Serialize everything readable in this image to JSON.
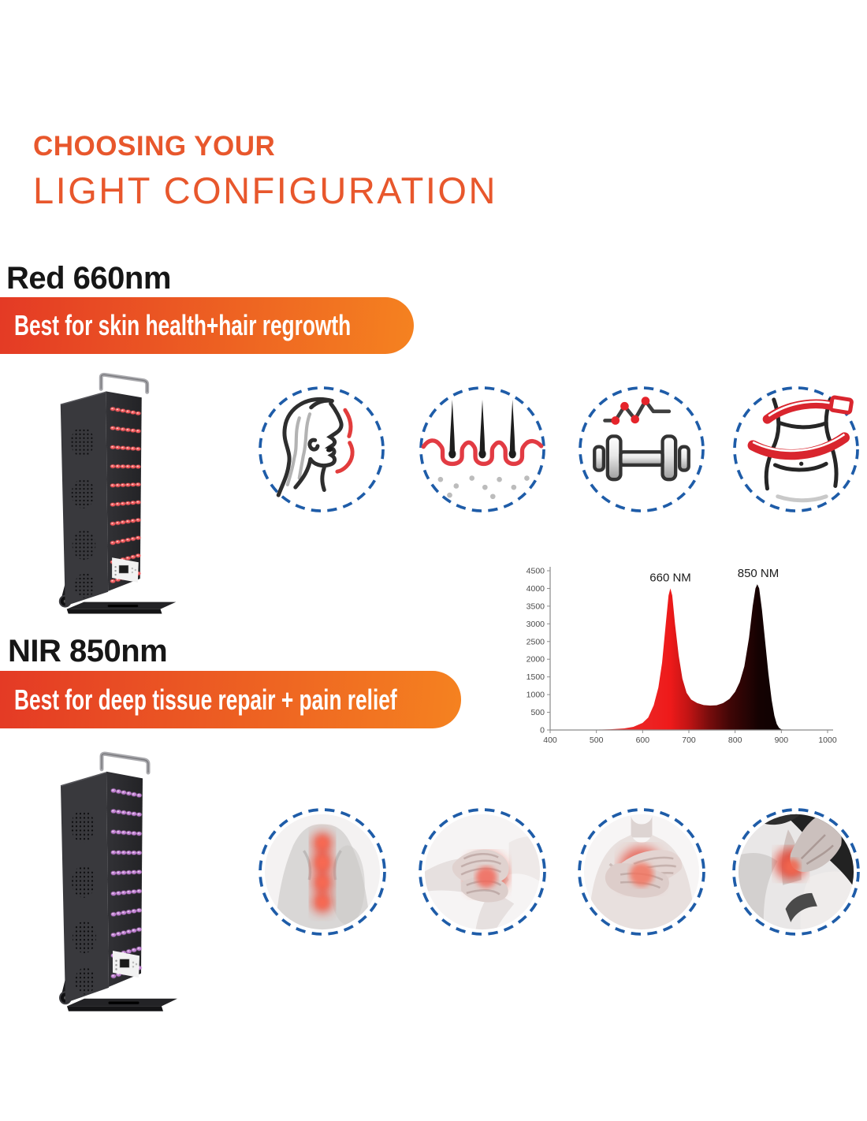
{
  "header": {
    "line1": "CHOOSING YOUR",
    "line2": "LIGHT CONFIGURATION"
  },
  "sections": [
    {
      "heading": "Red 660nm",
      "banner": "Best for skin health+hair regrowth",
      "icons": [
        {
          "name": "skin-health-icon"
        },
        {
          "name": "hair-regrowth-icon"
        },
        {
          "name": "muscle-recovery-icon"
        },
        {
          "name": "body-slimming-icon"
        }
      ],
      "product": {
        "name": "red-660nm-panel-image",
        "led_rows": 10,
        "led_cols": 6
      }
    },
    {
      "heading": "NIR 850nm",
      "banner": "Best for deep tissue repair + pain relief",
      "icons": [
        {
          "name": "back-pain-photo"
        },
        {
          "name": "knee-pain-photo"
        },
        {
          "name": "chest-pain-photo"
        },
        {
          "name": "neck-pain-photo"
        }
      ],
      "product": {
        "name": "nir-850nm-panel-image",
        "led_rows": 10,
        "led_cols": 6
      }
    }
  ],
  "chart_data": {
    "type": "area",
    "title": "",
    "xlabel": "",
    "ylabel": "",
    "xlim": [
      400,
      1000
    ],
    "ylim": [
      0,
      4500
    ],
    "x_ticks": [
      400,
      500,
      600,
      700,
      800,
      900,
      1000
    ],
    "y_ticks": [
      0,
      500,
      1000,
      1500,
      2000,
      2500,
      3000,
      3500,
      4000,
      4500
    ],
    "grid": false,
    "x": [
      400,
      460,
      500,
      530,
      560,
      580,
      600,
      612,
      624,
      634,
      642,
      650,
      656,
      660,
      664,
      670,
      678,
      686,
      695,
      705,
      718,
      732,
      746,
      760,
      774,
      788,
      800,
      810,
      820,
      830,
      838,
      844,
      848,
      852,
      858,
      865,
      872,
      879,
      885,
      890,
      895,
      900,
      910,
      1000
    ],
    "y": [
      5,
      6,
      10,
      20,
      45,
      90,
      200,
      350,
      700,
      1200,
      1900,
      3000,
      3800,
      4000,
      3800,
      3000,
      2100,
      1450,
      1050,
      860,
      760,
      705,
      690,
      700,
      760,
      880,
      1080,
      1350,
      1800,
      2600,
      3500,
      4000,
      4120,
      4000,
      3400,
      2500,
      1600,
      850,
      400,
      170,
      60,
      15,
      5,
      0
    ],
    "annotations": [
      {
        "label": "660 NM",
        "x": 660,
        "y": 4000
      },
      {
        "label": "850 NM",
        "x": 850,
        "y": 4120
      }
    ],
    "gradient_stops": [
      [
        "0",
        "#E03535"
      ],
      [
        "0.36",
        "#ED2222"
      ],
      [
        "0.433",
        "#EE1A1A"
      ],
      [
        "0.5",
        "#C01414"
      ],
      [
        "0.57",
        "#7A0D0D"
      ],
      [
        "0.65",
        "#3F0606"
      ],
      [
        "0.75",
        "#150202"
      ],
      [
        "1",
        "#000000"
      ]
    ]
  },
  "colors": {
    "vars": {
      "accent": "#E8572C",
      "heading": "#161616",
      "banner_from": "#E43A25",
      "banner_to": "#F58220",
      "dash_blue": "#1E5CA8",
      "chart_axis": "#8a8a8a"
    },
    "panels": [
      {
        "led": "#F2595C",
        "led_hi": "#FFC9C6"
      },
      {
        "led": "#BF7FD0",
        "led_hi": "#EBCFF2"
      }
    ]
  }
}
